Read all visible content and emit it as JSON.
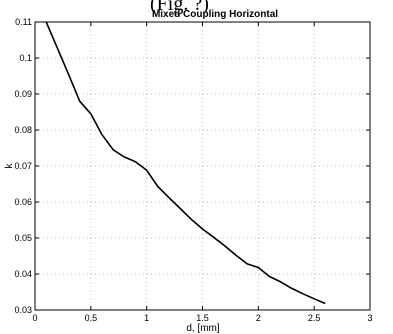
{
  "header_fragment": "(Fig. ?)",
  "chart_data": {
    "type": "line",
    "title": "Mixed Coupling Horizontal",
    "xlabel": "d, [mm]",
    "ylabel": "k",
    "xlim": [
      0,
      3
    ],
    "ylim": [
      0.03,
      0.11
    ],
    "x_ticks": [
      0,
      0.5,
      1,
      1.5,
      2,
      2.5,
      3
    ],
    "x_tick_labels": [
      "0",
      "0.5",
      "1",
      "1.5",
      "2",
      "2.5",
      "3"
    ],
    "y_ticks": [
      0.03,
      0.04,
      0.05,
      0.06,
      0.07,
      0.08,
      0.09,
      0.1,
      0.11
    ],
    "y_tick_labels": [
      "0.03",
      "0.04",
      "0.05",
      "0.06",
      "0.07",
      "0.08",
      "0.09",
      "0.1",
      "0.11"
    ],
    "grid": true,
    "series": [
      {
        "color": "#000000",
        "x": [
          0.1,
          0.2,
          0.3,
          0.4,
          0.5,
          0.6,
          0.7,
          0.8,
          0.9,
          1.0,
          1.1,
          1.2,
          1.3,
          1.4,
          1.5,
          1.6,
          1.7,
          1.8,
          1.9,
          2.0,
          2.1,
          2.2,
          2.3,
          2.4,
          2.5,
          2.6
        ],
        "y": [
          0.11,
          0.1028,
          0.0955,
          0.088,
          0.0845,
          0.0787,
          0.0745,
          0.0725,
          0.0712,
          0.0688,
          0.0643,
          0.0612,
          0.0582,
          0.0552,
          0.0525,
          0.0502,
          0.0478,
          0.0452,
          0.0428,
          0.0418,
          0.0393,
          0.0378,
          0.036,
          0.0345,
          0.0331,
          0.0318
        ]
      }
    ]
  }
}
